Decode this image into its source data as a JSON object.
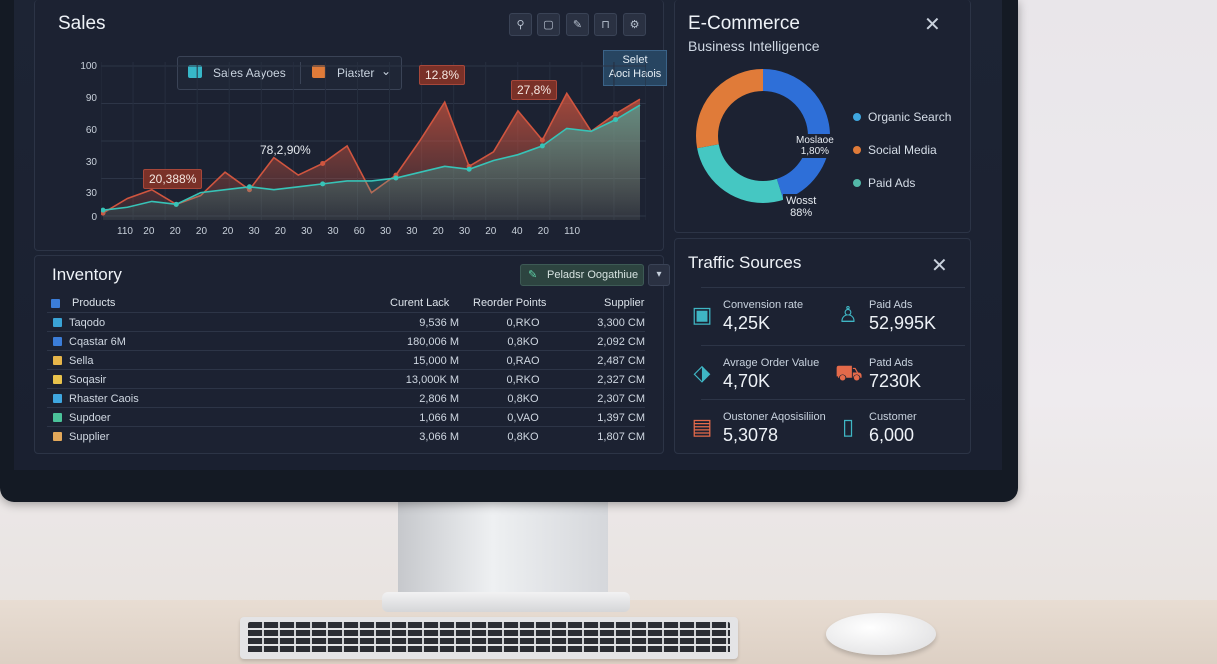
{
  "sales": {
    "title": "Sales",
    "legend": {
      "item1": "Sales Aayoes",
      "item2": "Piaster"
    },
    "callouts": {
      "a": "12.8%",
      "b": "27,8%",
      "c": "78,2,90%",
      "d": "20,388%"
    },
    "select": {
      "line1": "Selet",
      "line2": "Aoci Haois"
    },
    "y_labels": [
      "100",
      "90",
      "60",
      "30",
      "30",
      "0"
    ],
    "x_labels": [
      "110",
      "20",
      "20",
      "20",
      "20",
      "30",
      "20",
      "30",
      "30",
      "60",
      "30",
      "30",
      "20",
      "30",
      "20",
      "40",
      "20",
      "110"
    ],
    "colors": {
      "red": "#d0553f",
      "teal": "#37c3b7",
      "accent_blue": "#2e6fd8"
    }
  },
  "chart_data": {
    "type": "area",
    "title": "Sales",
    "series": [
      {
        "values": [
          2,
          12,
          18,
          8,
          14,
          30,
          18,
          40,
          28,
          36,
          48,
          16,
          28,
          52,
          78,
          34,
          44,
          72,
          52,
          84,
          58,
          70,
          80
        ]
      },
      {
        "values": [
          4,
          6,
          10,
          8,
          16,
          18,
          20,
          18,
          20,
          22,
          24,
          24,
          26,
          30,
          34,
          32,
          38,
          42,
          48,
          60,
          58,
          66,
          76
        ]
      }
    ],
    "ylim": [
      0,
      100
    ]
  },
  "inventory": {
    "title": "Inventory",
    "tool_label": "Peladsr Oogathiue",
    "headers": {
      "products": "Products",
      "current": "Curent Lack",
      "reorder": "Reorder Points",
      "supplier": "Supplier"
    },
    "rows": [
      {
        "name": "Taqodo",
        "current": "9,536 M",
        "reorder": "0,RKO",
        "supplier": "3,300 CM",
        "color": "#3aa3d6"
      },
      {
        "name": "Cqastar 6M",
        "current": "180,006 M",
        "reorder": "0,8KO",
        "supplier": "2,092 CM",
        "color": "#3b7dd8"
      },
      {
        "name": "Sella",
        "current": "15,000 M",
        "reorder": "0,RAO",
        "supplier": "2,487 CM",
        "color": "#e6b54a"
      },
      {
        "name": "Soqasir",
        "current": "13,000K M",
        "reorder": "0,RKO",
        "supplier": "2,327 CM",
        "color": "#e8c24c"
      },
      {
        "name": "Rhaster Caois",
        "current": "2,806 M",
        "reorder": "0,8KO",
        "supplier": "2,307 CM",
        "color": "#3fa7e0"
      },
      {
        "name": "Supdoer",
        "current": "1,066 M",
        "reorder": "0,VAO",
        "supplier": "1,397 CM",
        "color": "#4bc29a"
      },
      {
        "name": "Supplier",
        "current": "3,066 M",
        "reorder": "0,8KO",
        "supplier": "1,807 CM",
        "color": "#e3a85a"
      }
    ]
  },
  "ecommerce": {
    "title": "E-Commerce",
    "subtitle": "Business Intelligence",
    "donut_label1": {
      "line1": "Moslaoe",
      "line2": "1,80%"
    },
    "donut_label2": {
      "line1": "Wosst",
      "line2": "88%"
    },
    "legend": [
      {
        "label": "Organic Search",
        "color": "#3fa7e0"
      },
      {
        "label": "Social Media",
        "color": "#e07b39"
      },
      {
        "label": "Paid Ads",
        "color": "#53b8a8"
      }
    ],
    "donut": {
      "slices": [
        {
          "name": "blue",
          "value": 45,
          "color": "#2e6fd8"
        },
        {
          "name": "teal",
          "value": 27,
          "color": "#45c7c2"
        },
        {
          "name": "orange",
          "value": 28,
          "color": "#e07b39"
        }
      ]
    }
  },
  "traffic": {
    "title": "Traffic Sources",
    "metrics": [
      {
        "label": "Convension rate",
        "value": "4,25K",
        "icon": "monitor-icon",
        "color": "#3fb6c4"
      },
      {
        "label": "Paid Ads",
        "value": "52,995K",
        "icon": "user-icon",
        "color": "#3fb6c4"
      },
      {
        "label": "Avrage Order Value",
        "value": "4,70K",
        "icon": "tag-icon",
        "color": "#3fb6c4"
      },
      {
        "label": "Patd Ads",
        "value": "7230K",
        "icon": "truck-icon",
        "color": "#e46a4a"
      },
      {
        "label": "Oustoner Aqosisiliion",
        "value": "5,3078",
        "icon": "presentation-icon",
        "color": "#e46a4a"
      },
      {
        "label": "Customer",
        "value": "6,000",
        "icon": "device-icon",
        "color": "#3fb6c4"
      }
    ]
  }
}
